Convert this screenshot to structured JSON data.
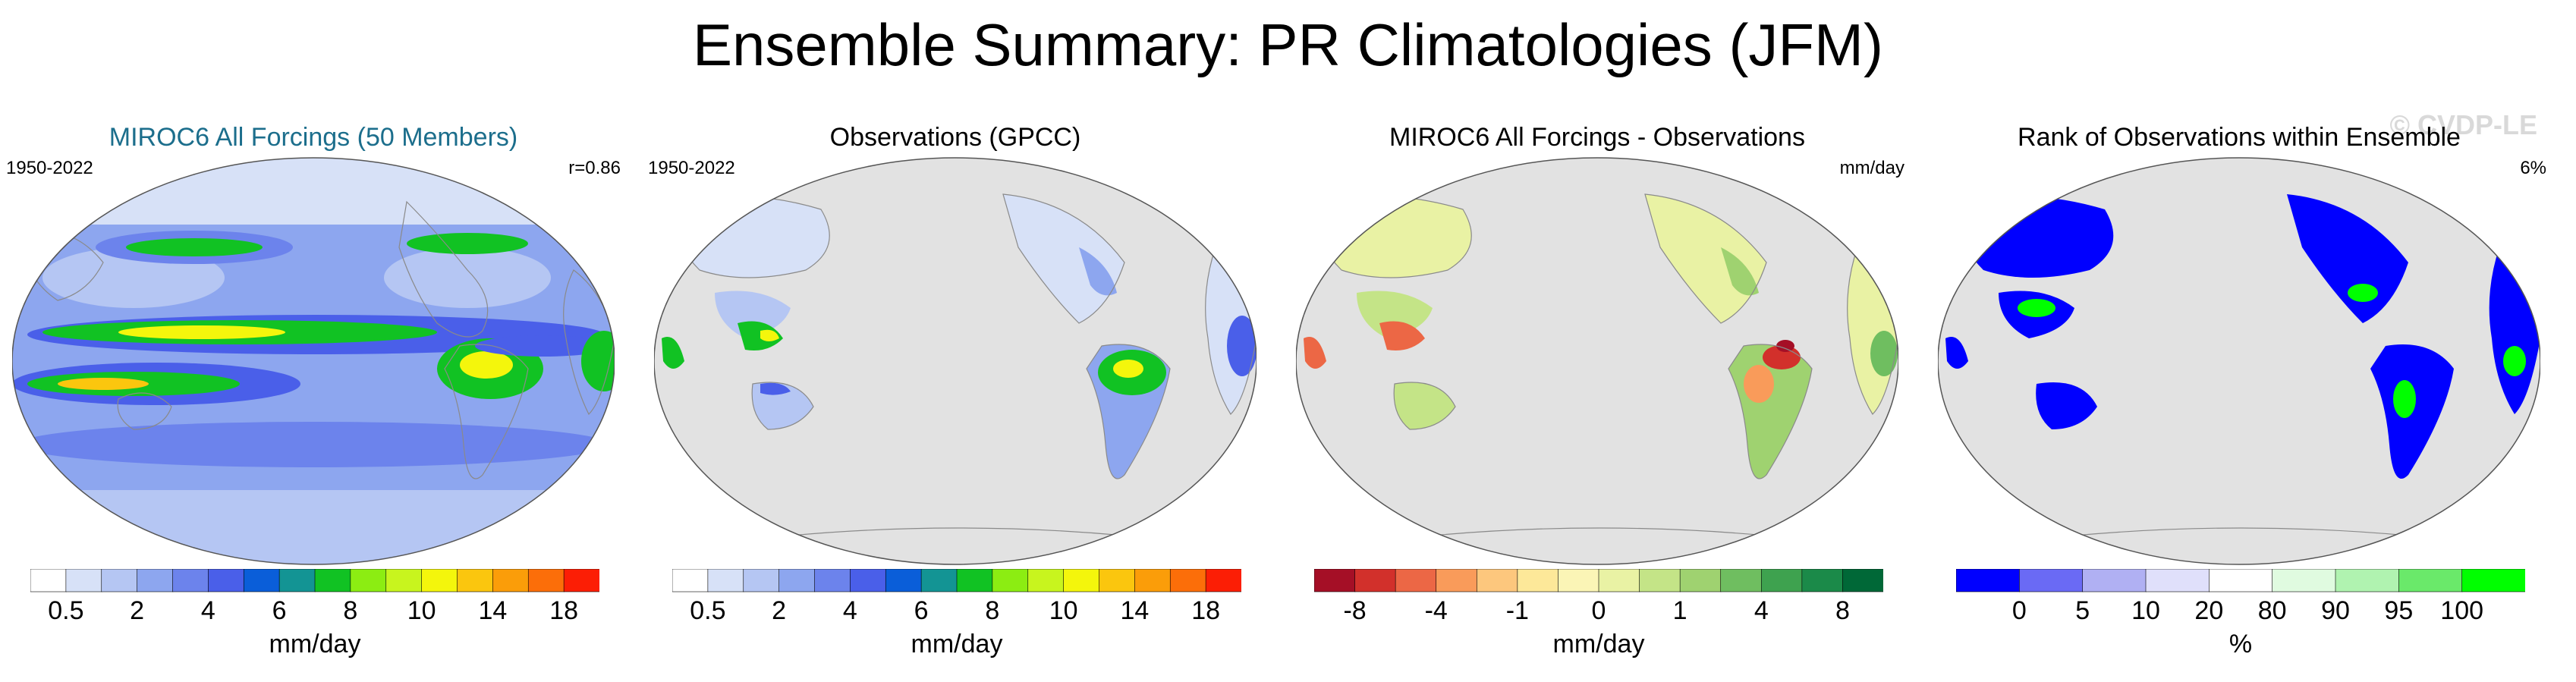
{
  "title": "Ensemble Summary: PR Climatologies (JFM)",
  "watermark": "© CVDP-LE",
  "colors": {
    "accent_title": "#1c6e8c",
    "ocean_gray": "#e2e2e2",
    "coast_gray": "#8a8a8a"
  },
  "panels": [
    {
      "title": "MIROC6 All Forcings (50 Members)",
      "period": "1950-2022",
      "stat": "r=0.86",
      "units": "mm/day",
      "colorbar": {
        "colors": [
          "#ffffff",
          "#d7e1f7",
          "#b5c6f3",
          "#8da6ef",
          "#6c83ec",
          "#4a5fe9",
          "#0a5ed9",
          "#139494",
          "#11c223",
          "#8ced12",
          "#c8f51e",
          "#f4f60c",
          "#fbc60e",
          "#fb9d09",
          "#fc6e09",
          "#fc1e05"
        ],
        "tick_labels": [
          "0.5",
          "2",
          "4",
          "6",
          "8",
          "10",
          "14",
          "18"
        ]
      }
    },
    {
      "title": "Observations (GPCC)",
      "period": "1950-2022",
      "stat": "",
      "units": "mm/day",
      "colorbar": {
        "colors": [
          "#ffffff",
          "#d7e1f7",
          "#b5c6f3",
          "#8da6ef",
          "#6c83ec",
          "#4a5fe9",
          "#0a5ed9",
          "#139494",
          "#11c223",
          "#8ced12",
          "#c8f51e",
          "#f4f60c",
          "#fbc60e",
          "#fb9d09",
          "#fc6e09",
          "#fc1e05"
        ],
        "tick_labels": [
          "0.5",
          "2",
          "4",
          "6",
          "8",
          "10",
          "14",
          "18"
        ]
      }
    },
    {
      "title": "MIROC6 All Forcings - Observations",
      "period": "",
      "stat": "mm/day",
      "units": "mm/day",
      "colorbar": {
        "colors": [
          "#a50f26",
          "#d2302b",
          "#ec6745",
          "#f99b5a",
          "#fdc77d",
          "#fde899",
          "#fbf5b6",
          "#e9f2a4",
          "#c4e487",
          "#9fd270",
          "#6fbe60",
          "#3ea24f",
          "#1b8a49",
          "#006837"
        ],
        "tick_labels": [
          "-8",
          "-4",
          "-1",
          "0",
          "1",
          "4",
          "8"
        ]
      }
    },
    {
      "title": "Rank of Observations within Ensemble",
      "period": "",
      "stat": "6%",
      "units": "%",
      "colorbar": {
        "colors": [
          "#0000ff",
          "#6a6af5",
          "#b0b0f3",
          "#e0e0fb",
          "#ffffff",
          "#e0fbe0",
          "#b0f3b0",
          "#6ae96a",
          "#00ff00"
        ],
        "tick_labels": [
          "0",
          "5",
          "10",
          "20",
          "80",
          "90",
          "95",
          "100"
        ]
      }
    }
  ]
}
